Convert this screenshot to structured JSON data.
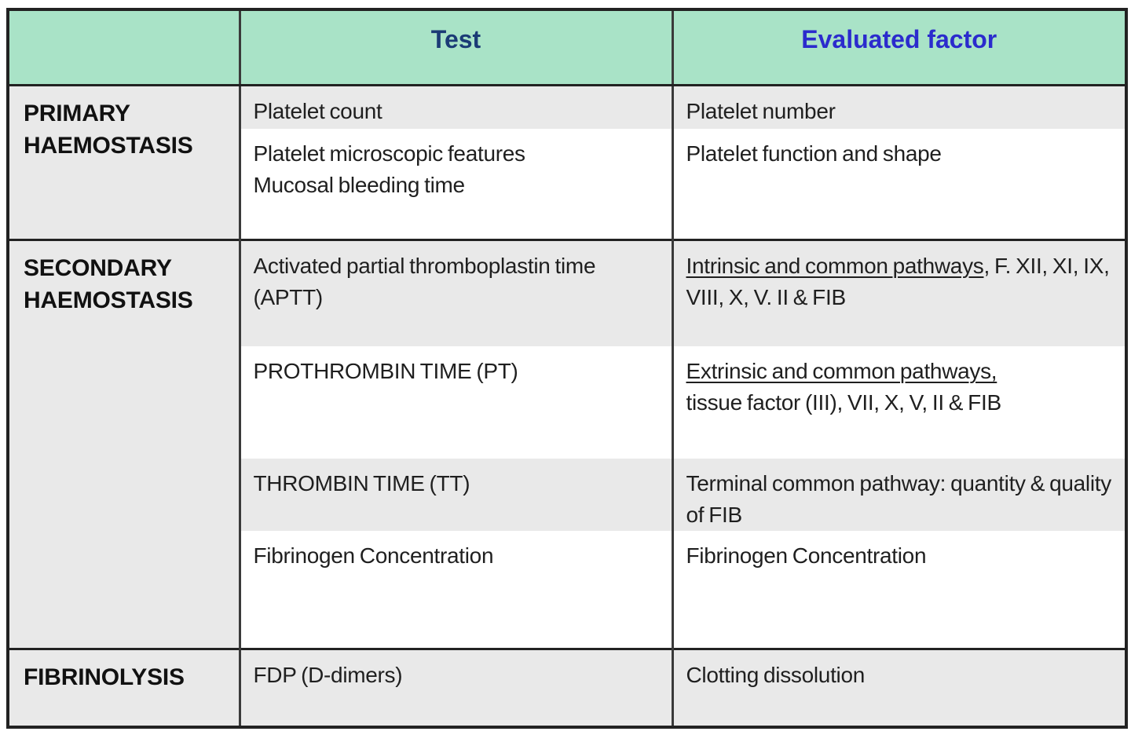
{
  "header": {
    "corner": "",
    "test": "Test",
    "factor": "Evaluated factor"
  },
  "groups": {
    "primary": {
      "label": "PRIMARY HAEMOSTASIS"
    },
    "secondary": {
      "label": "SECONDARY HAEMOSTASIS"
    },
    "fibrinolysis": {
      "label": "FIBRINOLYSIS"
    }
  },
  "rows": {
    "platelet_count": {
      "test": "Platelet count",
      "factor": "Platelet number"
    },
    "platelet_micro": {
      "test_line1": "Platelet microscopic features",
      "test_line2": "Mucosal bleeding time",
      "factor": "Platelet function and shape"
    },
    "aptt": {
      "test_line1": "Activated partial thromboplastin time",
      "test_line2": "(APTT)",
      "factor_underlined": "Intrinsic and common pathways",
      "factor_rest": ", F. XII, XI, IX, VIII, X, V. II & FIB"
    },
    "pt": {
      "test": "PROTHROMBIN TIME (PT)",
      "factor_underlined": "Extrinsic and common pathways,",
      "factor_line2": "tissue factor (III), VII, X, V, II & FIB"
    },
    "tt": {
      "test": "THROMBIN TIME (TT)",
      "factor": "Terminal common pathway: quantity & quality of FIB"
    },
    "fibrinogen": {
      "test": "Fibrinogen Concentration",
      "factor": "Fibrinogen Concentration"
    },
    "fdp": {
      "test": "FDP (D-dimers)",
      "factor": "Clotting dissolution"
    }
  },
  "colors": {
    "header_bg": "#a9e3c7",
    "row_gray": "#e9e9e9",
    "row_white": "#ffffff",
    "border_dark": "#222222",
    "border_inner": "#3a3a3a",
    "header_test_color": "#1b3b76",
    "header_factor_color": "#2b2bcd",
    "body_text": "#1f1f1f"
  }
}
